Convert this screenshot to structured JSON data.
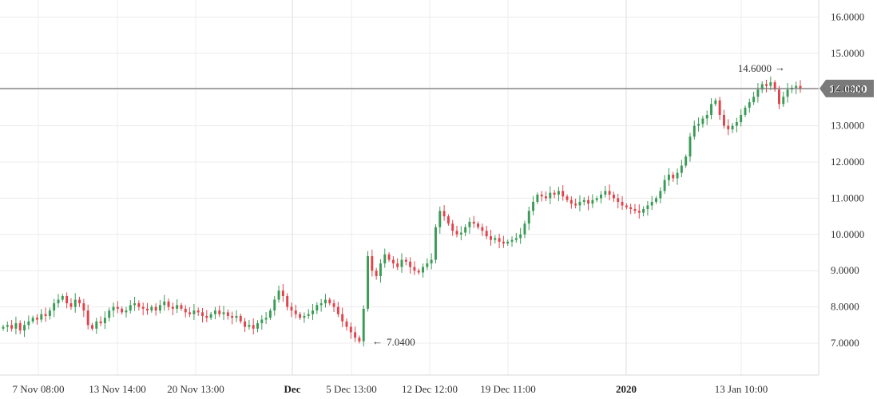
{
  "chart_data": {
    "type": "candlestick",
    "title": "",
    "xlabel": "",
    "ylabel": "",
    "ylim": [
      6.1,
      16.4
    ],
    "y_ticks": [
      7,
      8,
      9,
      10,
      11,
      12,
      13,
      14,
      15,
      16
    ],
    "y_tick_labels": [
      "7.0000",
      "8.0000",
      "9.0000",
      "10.0000",
      "11.0000",
      "12.0000",
      "13.0000",
      "14.0000",
      "15.0000",
      "16.0000"
    ],
    "x_tick_labels": [
      {
        "label": "7 Nov 08:00",
        "bold": false
      },
      {
        "label": "13 Nov 14:00",
        "bold": false
      },
      {
        "label": "20 Nov 13:00",
        "bold": false
      },
      {
        "label": "Dec",
        "bold": true
      },
      {
        "label": "5 Dec 13:00",
        "bold": false
      },
      {
        "label": "12 Dec 12:00",
        "bold": false
      },
      {
        "label": "19 Dec 11:00",
        "bold": false
      },
      {
        "label": "2020",
        "bold": true
      },
      {
        "label": "13 Jan 10:00",
        "bold": false
      }
    ],
    "current_price": {
      "value": 14.03,
      "label": "14.0300"
    },
    "annotations": [
      {
        "label": "14.6000",
        "value": 14.6,
        "kind": "high",
        "arrow": "→"
      },
      {
        "label": "7.0400",
        "value": 7.04,
        "kind": "low",
        "arrow": "←"
      }
    ],
    "colors": {
      "up": "#3a9b56",
      "down": "#e0434b",
      "grid": "#ececec",
      "price_line": "#777777",
      "price_label_bg": "#7a7a7a"
    },
    "series": [
      {
        "values": [
          7.45,
          7.5,
          7.4,
          7.55,
          7.35,
          7.5,
          7.6,
          7.7,
          7.65,
          7.8,
          7.75,
          7.9,
          8.1,
          8.2,
          8.3,
          8.1,
          8.0,
          8.2,
          8.1,
          7.9,
          7.5,
          7.4,
          7.6,
          7.55,
          7.7,
          7.9,
          8.0,
          7.95,
          7.85,
          7.9,
          8.05,
          8.1,
          8.0,
          7.95,
          7.9,
          8.0,
          7.9,
          8.05,
          8.15,
          8.0,
          7.95,
          8.05,
          7.95,
          7.85,
          7.8,
          7.9,
          7.85,
          7.75,
          7.7,
          7.8,
          7.9,
          7.8,
          7.85,
          7.75,
          7.7,
          7.75,
          7.6,
          7.45,
          7.5,
          7.4,
          7.55,
          7.65,
          7.7,
          7.9,
          8.2,
          8.45,
          8.3,
          8.0,
          7.9,
          7.8,
          7.7,
          7.75,
          7.8,
          7.9,
          8.05,
          8.1,
          8.2,
          8.1,
          8.0,
          7.8,
          7.6,
          7.45,
          7.3,
          7.15,
          7.05,
          7.95,
          9.4,
          9.0,
          8.85,
          9.2,
          9.45,
          9.3,
          9.2,
          9.1,
          9.3,
          9.25,
          9.1,
          9.0,
          8.95,
          9.1,
          9.2,
          9.3,
          10.2,
          10.65,
          10.5,
          10.3,
          10.1,
          10.0,
          10.05,
          10.2,
          10.35,
          10.3,
          10.2,
          10.1,
          9.95,
          9.85,
          9.9,
          9.8,
          9.75,
          9.8,
          9.85,
          9.9,
          10.0,
          10.3,
          10.65,
          10.9,
          11.1,
          11.05,
          11.0,
          11.15,
          11.1,
          11.2,
          11.05,
          10.95,
          10.85,
          10.8,
          10.9,
          10.95,
          10.85,
          10.95,
          11.0,
          11.1,
          11.2,
          11.1,
          11.0,
          10.9,
          10.8,
          10.75,
          10.7,
          10.65,
          10.6,
          10.7,
          10.8,
          10.9,
          11.0,
          11.2,
          11.5,
          11.65,
          11.55,
          11.7,
          11.9,
          12.15,
          12.7,
          13.0,
          13.05,
          13.2,
          13.3,
          13.6,
          13.7,
          13.3,
          13.0,
          12.9,
          13.0,
          13.1,
          13.3,
          13.5,
          13.65,
          13.8,
          14.0,
          14.15,
          14.1,
          14.2,
          14.0,
          13.6,
          13.8,
          14.0,
          14.05,
          14.1,
          14.03
        ]
      }
    ]
  }
}
